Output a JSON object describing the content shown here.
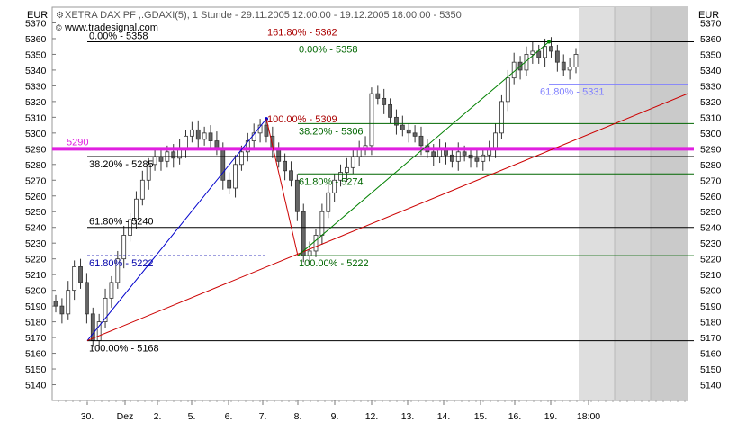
{
  "header": {
    "currency_left": "EUR",
    "currency_right": "EUR",
    "title": "XETRA DAX PF ,.GDAXI(5), 1 Stunde - 29.11.2005 12:00:00 - 19.12.2005 18:00:00 - 5350",
    "watermark": "www.tradesignal.com"
  },
  "chart_data": {
    "type": "candlestick",
    "ylim": [
      5130,
      5380
    ],
    "y_ticks": [
      5140,
      5150,
      5160,
      5170,
      5180,
      5190,
      5200,
      5210,
      5220,
      5230,
      5240,
      5250,
      5260,
      5270,
      5280,
      5290,
      5300,
      5310,
      5320,
      5330,
      5340,
      5350,
      5360,
      5370
    ],
    "x_tick_labels": [
      "30.",
      "Dez",
      "2.",
      "5.",
      "6.",
      "7.",
      "8.",
      "9.",
      "12.",
      "13.",
      "14.",
      "15.",
      "16.",
      "19.",
      "18:00"
    ],
    "closes": [
      5190,
      5185,
      5200,
      5215,
      5205,
      5185,
      5168,
      5180,
      5195,
      5205,
      5220,
      5235,
      5245,
      5258,
      5270,
      5280,
      5285,
      5282,
      5288,
      5284,
      5290,
      5298,
      5302,
      5296,
      5300,
      5295,
      5290,
      5270,
      5265,
      5280,
      5288,
      5295,
      5300,
      5305,
      5298,
      5290,
      5282,
      5276,
      5270,
      5250,
      5222,
      5225,
      5235,
      5250,
      5262,
      5270,
      5275,
      5278,
      5285,
      5290,
      5292,
      5325,
      5322,
      5318,
      5310,
      5305,
      5302,
      5300,
      5298,
      5292,
      5288,
      5285,
      5290,
      5286,
      5282,
      5288,
      5286,
      5284,
      5282,
      5286,
      5290,
      5300,
      5320,
      5335,
      5345,
      5340,
      5350,
      5352,
      5348,
      5355,
      5352,
      5345,
      5340,
      5342,
      5350
    ],
    "horizontal_lines": [
      {
        "value": 5358,
        "label": "0.00% - 5358",
        "color": "#000000"
      },
      {
        "value": 5285,
        "label": "38.20% - 5285",
        "color": "#000000"
      },
      {
        "value": 5240,
        "label": "61.80% - 5240",
        "color": "#000000"
      },
      {
        "value": 5168,
        "label": "100.00% - 5168",
        "color": "#000000"
      },
      {
        "value": 5222,
        "label": "61.80% - 5222",
        "color": "#0000aa",
        "dashed": true
      },
      {
        "value": 5331,
        "label": "61.80% - 5331",
        "color": "#8080ff"
      },
      {
        "value": 5362,
        "label": "161.80% - 5362",
        "color": "#aa0000"
      },
      {
        "value": 5309,
        "label": "100.00% - 5309",
        "color": "#aa0000"
      },
      {
        "value": 5306,
        "label": "38.20% - 5306",
        "color": "#006600"
      },
      {
        "value": 5274,
        "label": "61.80% - 5274",
        "color": "#006600"
      },
      {
        "value": 5222,
        "label": "100.00% - 5222",
        "color": "#006600"
      },
      {
        "value": 5358,
        "label": "0.00% - 5358",
        "color": "#006600"
      }
    ],
    "highlight_level": {
      "value": 5290,
      "label": "5290",
      "color": "#e020e0"
    },
    "colors": {
      "blue": "#0000cc",
      "red": "#cc0000",
      "green": "#008000",
      "shade": "#d8d8d8"
    }
  }
}
